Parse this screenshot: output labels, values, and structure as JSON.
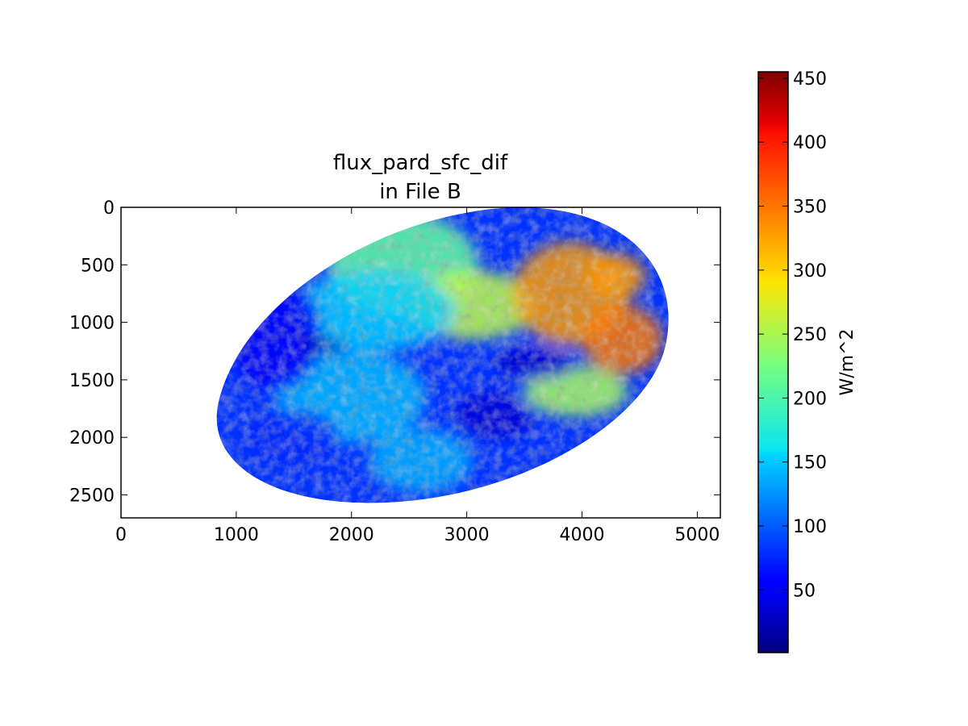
{
  "chart_data": {
    "type": "heatmap",
    "title_lines": [
      "flux_pard_sfc_dif",
      "in File B"
    ],
    "xlabel": "",
    "ylabel": "",
    "xlim": [
      0,
      5200
    ],
    "ylim": [
      2700,
      0
    ],
    "x_ticks": [
      0,
      1000,
      2000,
      3000,
      4000,
      5000
    ],
    "y_ticks": [
      0,
      500,
      1000,
      1500,
      2000,
      2500
    ],
    "x_tick_labels": [
      "0",
      "1000",
      "2000",
      "3000",
      "4000",
      "5000"
    ],
    "y_tick_labels": [
      "0",
      "500",
      "1000",
      "1500",
      "2000",
      "2500"
    ],
    "colormap": "jet",
    "colorbar": {
      "label": "W/m^2",
      "range": [
        1,
        455
      ],
      "ticks": [
        50,
        100,
        150,
        200,
        250,
        300,
        350,
        400,
        450
      ],
      "tick_labels": [
        "50",
        "100",
        "150",
        "200",
        "250",
        "300",
        "350",
        "400",
        "450"
      ]
    },
    "disk": {
      "center_x": 2860,
      "center_y": 1450,
      "x_extent": [
        830,
        4750
      ],
      "y_extent": [
        0,
        2570
      ]
    },
    "regions": [
      {
        "cx": 2450,
        "cy": 500,
        "rx": 650,
        "ry": 450,
        "value": 215
      },
      {
        "cx": 3050,
        "cy": 850,
        "rx": 550,
        "ry": 300,
        "value": 255
      },
      {
        "cx": 3900,
        "cy": 750,
        "rx": 500,
        "ry": 450,
        "value": 330
      },
      {
        "cx": 4350,
        "cy": 1150,
        "rx": 350,
        "ry": 300,
        "value": 345
      },
      {
        "cx": 4300,
        "cy": 600,
        "rx": 250,
        "ry": 200,
        "value": 330
      },
      {
        "cx": 3950,
        "cy": 1600,
        "rx": 450,
        "ry": 220,
        "value": 245
      },
      {
        "cx": 2200,
        "cy": 900,
        "rx": 700,
        "ry": 350,
        "value": 150
      },
      {
        "cx": 2000,
        "cy": 1650,
        "rx": 650,
        "ry": 400,
        "value": 140
      },
      {
        "cx": 2600,
        "cy": 2200,
        "rx": 450,
        "ry": 280,
        "value": 135
      },
      {
        "cx": 1350,
        "cy": 1100,
        "rx": 400,
        "ry": 500,
        "value": 55
      },
      {
        "cx": 1750,
        "cy": 1200,
        "rx": 200,
        "ry": 60,
        "value": 20
      },
      {
        "cx": 3250,
        "cy": 1800,
        "rx": 350,
        "ry": 200,
        "value": 40
      },
      {
        "cx": 3600,
        "cy": 1350,
        "rx": 350,
        "ry": 150,
        "value": 35
      },
      {
        "cx": 1500,
        "cy": 2000,
        "rx": 400,
        "ry": 250,
        "value": 75
      }
    ]
  }
}
